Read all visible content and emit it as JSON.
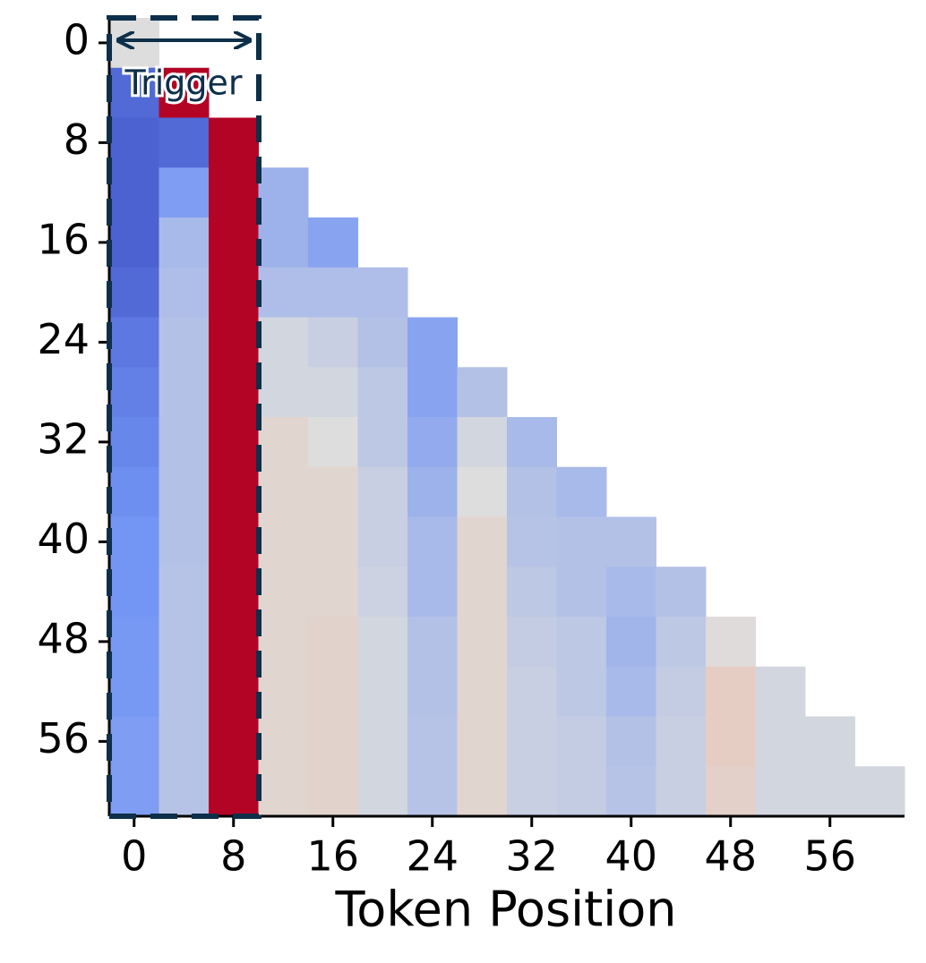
{
  "chart_data": {
    "type": "heatmap",
    "x_label": "Token Position",
    "annotation": "Trigger",
    "colormap": "coolwarm",
    "clim": [
      -1,
      1
    ],
    "x": [
      0,
      4,
      8,
      12,
      16,
      20,
      24,
      28,
      32,
      36,
      40,
      44,
      48,
      52,
      56,
      60
    ],
    "y": [
      0,
      4,
      8,
      12,
      16,
      20,
      24,
      28,
      32,
      36,
      40,
      44,
      48,
      52,
      56,
      60
    ],
    "xlim": [
      -2,
      62
    ],
    "ylim": [
      62,
      -2
    ],
    "xticks": [
      0,
      8,
      16,
      24,
      32,
      40,
      48,
      56
    ],
    "yticks": [
      0,
      8,
      16,
      24,
      32,
      40,
      48,
      56
    ],
    "values": [
      [
        0.0,
        null,
        null,
        null,
        null,
        null,
        null,
        null,
        null,
        null,
        null,
        null,
        null,
        null,
        null,
        null
      ],
      [
        -0.8,
        1.0,
        null,
        null,
        null,
        null,
        null,
        null,
        null,
        null,
        null,
        null,
        null,
        null,
        null,
        null
      ],
      [
        -0.85,
        -0.8,
        1.0,
        null,
        null,
        null,
        null,
        null,
        null,
        null,
        null,
        null,
        null,
        null,
        null,
        null
      ],
      [
        -0.85,
        -0.45,
        1.0,
        -0.3,
        null,
        null,
        null,
        null,
        null,
        null,
        null,
        null,
        null,
        null,
        null,
        null
      ],
      [
        -0.85,
        -0.25,
        1.0,
        -0.3,
        -0.4,
        null,
        null,
        null,
        null,
        null,
        null,
        null,
        null,
        null,
        null,
        null
      ],
      [
        -0.8,
        -0.22,
        1.0,
        -0.22,
        -0.22,
        -0.22,
        null,
        null,
        null,
        null,
        null,
        null,
        null,
        null,
        null,
        null
      ],
      [
        -0.7,
        -0.2,
        1.0,
        -0.05,
        -0.1,
        -0.2,
        -0.4,
        null,
        null,
        null,
        null,
        null,
        null,
        null,
        null,
        null
      ],
      [
        -0.65,
        -0.2,
        1.0,
        -0.05,
        -0.05,
        -0.15,
        -0.4,
        -0.2,
        null,
        null,
        null,
        null,
        null,
        null,
        null,
        null
      ],
      [
        -0.6,
        -0.2,
        1.0,
        0.08,
        0.0,
        -0.15,
        -0.35,
        -0.05,
        -0.25,
        null,
        null,
        null,
        null,
        null,
        null,
        null
      ],
      [
        -0.55,
        -0.2,
        1.0,
        0.08,
        0.08,
        -0.1,
        -0.3,
        0.0,
        -0.2,
        -0.25,
        null,
        null,
        null,
        null,
        null,
        null
      ],
      [
        -0.5,
        -0.2,
        1.0,
        0.08,
        0.08,
        -0.1,
        -0.25,
        0.08,
        -0.18,
        -0.2,
        -0.2,
        null,
        null,
        null,
        null,
        null
      ],
      [
        -0.5,
        -0.18,
        1.0,
        0.08,
        0.08,
        -0.08,
        -0.25,
        0.08,
        -0.15,
        -0.2,
        -0.25,
        -0.2,
        null,
        null,
        null,
        null
      ],
      [
        -0.48,
        -0.18,
        1.0,
        0.08,
        0.1,
        -0.05,
        -0.2,
        0.08,
        -0.12,
        -0.15,
        -0.28,
        -0.15,
        0.02,
        null,
        null,
        null
      ],
      [
        -0.48,
        -0.18,
        1.0,
        0.08,
        0.1,
        -0.05,
        -0.2,
        0.08,
        -0.1,
        -0.15,
        -0.25,
        -0.12,
        0.15,
        -0.05,
        null,
        null
      ],
      [
        -0.45,
        -0.18,
        1.0,
        0.08,
        0.1,
        -0.05,
        -0.18,
        0.08,
        -0.1,
        -0.12,
        -0.2,
        -0.1,
        0.15,
        -0.05,
        -0.05,
        null
      ],
      [
        -0.45,
        -0.18,
        1.0,
        0.08,
        0.1,
        -0.05,
        -0.18,
        0.08,
        -0.1,
        -0.12,
        -0.18,
        -0.1,
        0.12,
        -0.05,
        -0.05,
        -0.05
      ]
    ]
  }
}
